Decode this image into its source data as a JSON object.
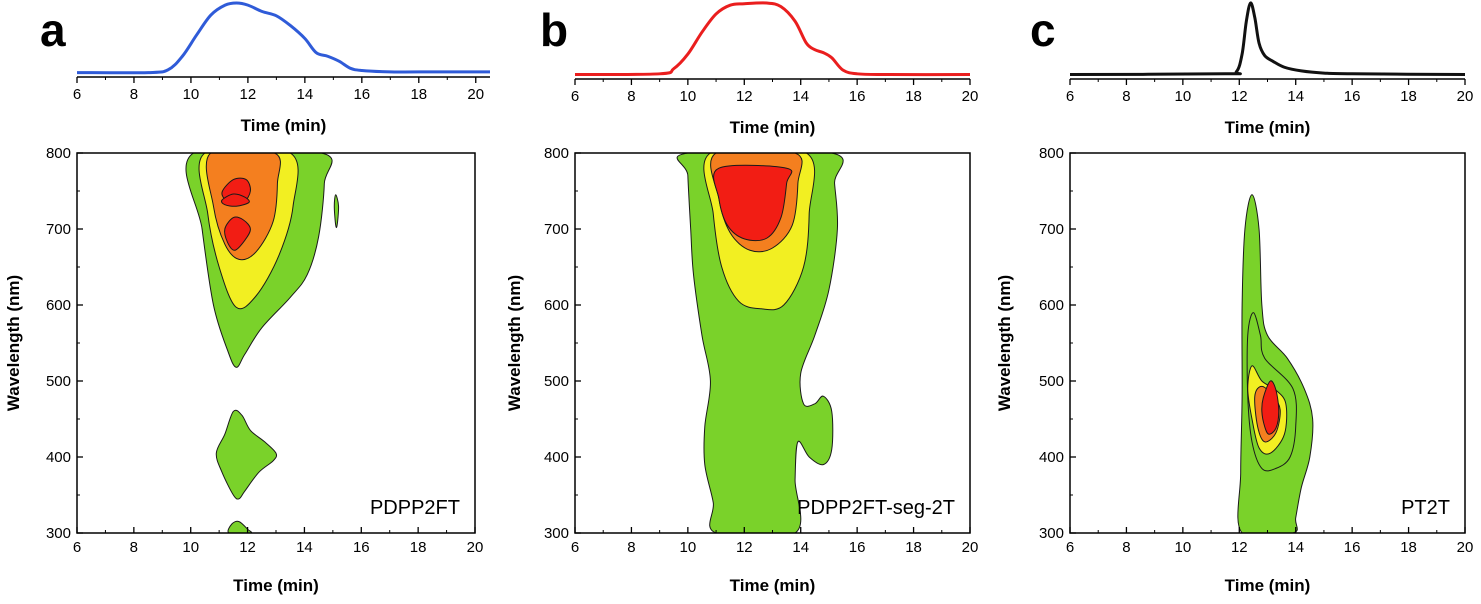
{
  "panels": [
    {
      "letter": "a",
      "sample": "PDPP2FT",
      "trace_color": "#2f5bd8"
    },
    {
      "letter": "b",
      "sample": "PDPP2FT-seg-2T",
      "trace_color": "#ea1e1e"
    },
    {
      "letter": "c",
      "sample": "PT2T",
      "trace_color": "#111111"
    }
  ],
  "contour_colors": [
    "#7ad22a",
    "#f2ef22",
    "#f47f1f",
    "#f21d14"
  ],
  "chart_data": [
    {
      "type": "line",
      "panel": "a",
      "xlabel": "Time (min)",
      "xlim": [
        6,
        20.5
      ],
      "x_ticks": [
        6,
        8,
        10,
        12,
        14,
        16,
        18,
        20
      ],
      "x": [
        6,
        8.5,
        9.2,
        9.7,
        10.2,
        10.7,
        11.2,
        11.6,
        12.0,
        12.5,
        13.0,
        13.5,
        14.0,
        14.4,
        14.8,
        15.2,
        15.6,
        16.0,
        17,
        18,
        20.5
      ],
      "y": [
        0.02,
        0.02,
        0.06,
        0.25,
        0.55,
        0.83,
        0.97,
        1.0,
        0.97,
        0.88,
        0.82,
        0.68,
        0.5,
        0.3,
        0.25,
        0.18,
        0.08,
        0.05,
        0.03,
        0.03,
        0.03
      ]
    },
    {
      "type": "line",
      "panel": "b",
      "xlabel": "Time (min)",
      "xlim": [
        6,
        20
      ],
      "x_ticks": [
        6,
        8,
        10,
        12,
        14,
        16,
        18,
        20
      ],
      "x": [
        6,
        9.0,
        9.5,
        10.0,
        10.5,
        11.0,
        11.5,
        12.0,
        12.8,
        13.3,
        13.8,
        14.2,
        14.5,
        14.8,
        15.1,
        15.5,
        16.0,
        17,
        20
      ],
      "y": [
        0.02,
        0.03,
        0.1,
        0.3,
        0.6,
        0.85,
        0.97,
        0.99,
        1.0,
        0.95,
        0.75,
        0.45,
        0.36,
        0.32,
        0.25,
        0.08,
        0.03,
        0.02,
        0.02
      ]
    },
    {
      "type": "line",
      "panel": "c",
      "xlabel": "Time (min)",
      "xlim": [
        6,
        20
      ],
      "x_ticks": [
        6,
        8,
        10,
        12,
        14,
        16,
        18,
        20
      ],
      "x": [
        6,
        11.5,
        11.9,
        12.1,
        12.25,
        12.4,
        12.55,
        12.7,
        12.9,
        13.2,
        13.6,
        14.2,
        15,
        16,
        20
      ],
      "y": [
        0.02,
        0.03,
        0.06,
        0.3,
        0.75,
        1.0,
        0.8,
        0.45,
        0.28,
        0.2,
        0.12,
        0.07,
        0.04,
        0.03,
        0.02
      ]
    },
    {
      "type": "heatmap",
      "panel": "a",
      "xlabel": "Time (min)",
      "ylabel": "Wavelength (nm)",
      "xlim": [
        6,
        20
      ],
      "ylim": [
        300,
        800
      ],
      "x_ticks": [
        6,
        8,
        10,
        12,
        14,
        16,
        18,
        20
      ],
      "y_ticks": [
        300,
        400,
        500,
        600,
        700,
        800
      ],
      "contours": [
        {
          "level": 0,
          "points": [
            [
              10.1,
              800
            ],
            [
              10.4,
              700
            ],
            [
              10.8,
              600
            ],
            [
              11.3,
              540
            ],
            [
              11.6,
              518
            ],
            [
              11.9,
              535
            ],
            [
              12.5,
              570
            ],
            [
              13.5,
              610
            ],
            [
              14.1,
              640
            ],
            [
              14.5,
              690
            ],
            [
              14.7,
              760
            ],
            [
              14.6,
              800
            ]
          ]
        },
        {
          "level": 0,
          "points": [
            [
              11.35,
              300
            ],
            [
              11.45,
              312
            ],
            [
              11.7,
              315
            ],
            [
              12.0,
              305
            ],
            [
              12.1,
              300
            ]
          ]
        },
        {
          "level": 0,
          "points": [
            [
              11.5,
              460
            ],
            [
              11.2,
              430
            ],
            [
              10.9,
              405
            ],
            [
              11.1,
              380
            ],
            [
              11.5,
              350
            ],
            [
              11.7,
              345
            ],
            [
              11.9,
              355
            ],
            [
              12.4,
              380
            ],
            [
              12.9,
              395
            ],
            [
              13.0,
              405
            ],
            [
              12.6,
              420
            ],
            [
              12.1,
              435
            ],
            [
              11.8,
              455
            ]
          ]
        },
        {
          "level": 0,
          "points": [
            [
              15.05,
              730
            ],
            [
              15.1,
              745
            ],
            [
              15.2,
              730
            ],
            [
              15.15,
              705
            ],
            [
              15.1,
              705
            ]
          ]
        },
        {
          "level": 1,
          "points": [
            [
              10.5,
              800
            ],
            [
              10.6,
              720
            ],
            [
              11.0,
              650
            ],
            [
              11.6,
              597
            ],
            [
              12.3,
              612
            ],
            [
              13.1,
              665
            ],
            [
              13.6,
              730
            ],
            [
              13.5,
              800
            ]
          ]
        },
        {
          "level": 2,
          "points": [
            [
              10.7,
              800
            ],
            [
              10.8,
              730
            ],
            [
              11.2,
              680
            ],
            [
              11.7,
              660
            ],
            [
              12.3,
              670
            ],
            [
              12.9,
              710
            ],
            [
              13.05,
              760
            ],
            [
              12.95,
              800
            ]
          ]
        },
        {
          "level": 3,
          "points": [
            [
              11.1,
              748
            ],
            [
              11.5,
              765
            ],
            [
              11.95,
              765
            ],
            [
              12.1,
              750
            ],
            [
              11.85,
              735
            ],
            [
              11.35,
              735
            ]
          ]
        },
        {
          "level": 3,
          "points": [
            [
              11.1,
              738
            ],
            [
              11.5,
              746
            ],
            [
              11.9,
              742
            ],
            [
              12.05,
              735
            ],
            [
              11.6,
              730
            ],
            [
              11.2,
              732
            ]
          ]
        },
        {
          "level": 3,
          "points": [
            [
              11.2,
              700
            ],
            [
              11.5,
              715
            ],
            [
              11.85,
              712
            ],
            [
              12.1,
              700
            ],
            [
              11.9,
              685
            ],
            [
              11.55,
              672
            ],
            [
              11.3,
              682
            ]
          ]
        }
      ]
    },
    {
      "type": "heatmap",
      "panel": "b",
      "xlabel": "Time (min)",
      "ylabel": "Wavelength (nm)",
      "xlim": [
        6,
        20
      ],
      "ylim": [
        300,
        800
      ],
      "x_ticks": [
        6,
        8,
        10,
        12,
        14,
        16,
        18,
        20
      ],
      "y_ticks": [
        300,
        400,
        500,
        600,
        700,
        800
      ],
      "contours": [
        {
          "level": 0,
          "points": [
            [
              11.0,
              300
            ],
            [
              10.9,
              340
            ],
            [
              10.6,
              390
            ],
            [
              10.6,
              440
            ],
            [
              10.8,
              500
            ],
            [
              10.5,
              560
            ],
            [
              10.2,
              640
            ],
            [
              10.1,
              700
            ],
            [
              10.0,
              770
            ],
            [
              10.0,
              800
            ],
            [
              15.1,
              800
            ],
            [
              15.2,
              760
            ],
            [
              15.3,
              700
            ],
            [
              15.0,
              620
            ],
            [
              14.5,
              560
            ],
            [
              14.0,
              510
            ],
            [
              14.1,
              470
            ],
            [
              14.5,
              470
            ],
            [
              14.8,
              480
            ],
            [
              15.1,
              460
            ],
            [
              15.1,
              410
            ],
            [
              14.8,
              390
            ],
            [
              14.3,
              400
            ],
            [
              13.9,
              420
            ],
            [
              13.8,
              370
            ],
            [
              13.8,
              300
            ]
          ]
        },
        {
          "level": 1,
          "points": [
            [
              10.8,
              800
            ],
            [
              10.9,
              720
            ],
            [
              11.2,
              650
            ],
            [
              11.8,
              605
            ],
            [
              12.6,
              595
            ],
            [
              13.4,
              600
            ],
            [
              14.1,
              650
            ],
            [
              14.3,
              720
            ],
            [
              14.2,
              800
            ]
          ]
        },
        {
          "level": 2,
          "points": [
            [
              11.0,
              800
            ],
            [
              11.1,
              740
            ],
            [
              11.5,
              695
            ],
            [
              12.2,
              672
            ],
            [
              13.0,
              675
            ],
            [
              13.7,
              705
            ],
            [
              13.9,
              760
            ],
            [
              13.8,
              800
            ]
          ]
        },
        {
          "level": 3,
          "points": [
            [
              11.1,
              780
            ],
            [
              11.1,
              740
            ],
            [
              11.4,
              705
            ],
            [
              12.0,
              687
            ],
            [
              12.8,
              688
            ],
            [
              13.3,
              715
            ],
            [
              13.5,
              760
            ],
            [
              13.5,
              780
            ]
          ]
        }
      ]
    },
    {
      "type": "heatmap",
      "panel": "c",
      "xlabel": "Time (min)",
      "ylabel": "Wavelength (nm)",
      "xlim": [
        6,
        20
      ],
      "ylim": [
        300,
        800
      ],
      "x_ticks": [
        6,
        8,
        10,
        12,
        14,
        16,
        18,
        20
      ],
      "y_ticks": [
        300,
        400,
        500,
        600,
        700,
        800
      ],
      "contours": [
        {
          "level": 0,
          "points": [
            [
              12.1,
              300
            ],
            [
              12.05,
              380
            ],
            [
              12.1,
              480
            ],
            [
              12.1,
              600
            ],
            [
              12.2,
              700
            ],
            [
              12.45,
              745
            ],
            [
              12.7,
              700
            ],
            [
              12.8,
              600
            ],
            [
              13.0,
              560
            ],
            [
              13.7,
              530
            ],
            [
              14.3,
              490
            ],
            [
              14.6,
              450
            ],
            [
              14.5,
              400
            ],
            [
              14.2,
              360
            ],
            [
              14.0,
              320
            ],
            [
              13.9,
              300
            ]
          ]
        },
        {
          "level": 0,
          "points": [
            [
              12.3,
              560
            ],
            [
              12.5,
              590
            ],
            [
              12.75,
              560
            ],
            [
              12.9,
              530
            ],
            [
              13.9,
              490
            ],
            [
              14.0,
              440
            ],
            [
              13.8,
              400
            ],
            [
              13.3,
              385
            ],
            [
              12.8,
              385
            ],
            [
              12.45,
              420
            ],
            [
              12.3,
              480
            ]
          ]
        },
        {
          "level": 1,
          "points": [
            [
              12.3,
              490
            ],
            [
              12.45,
              520
            ],
            [
              12.8,
              500
            ],
            [
              13.3,
              488
            ],
            [
              13.65,
              470
            ],
            [
              13.6,
              430
            ],
            [
              13.1,
              405
            ],
            [
              12.7,
              412
            ],
            [
              12.45,
              450
            ]
          ]
        },
        {
          "level": 2,
          "points": [
            [
              12.55,
              480
            ],
            [
              12.8,
              493
            ],
            [
              13.2,
              480
            ],
            [
              13.45,
              462
            ],
            [
              13.3,
              432
            ],
            [
              12.9,
              420
            ],
            [
              12.65,
              440
            ]
          ]
        },
        {
          "level": 3,
          "points": [
            [
              12.85,
              478
            ],
            [
              13.1,
              500
            ],
            [
              13.3,
              488
            ],
            [
              13.4,
              460
            ],
            [
              13.3,
              438
            ],
            [
              13.05,
              430
            ],
            [
              12.9,
              440
            ],
            [
              12.8,
              460
            ]
          ]
        }
      ]
    }
  ]
}
